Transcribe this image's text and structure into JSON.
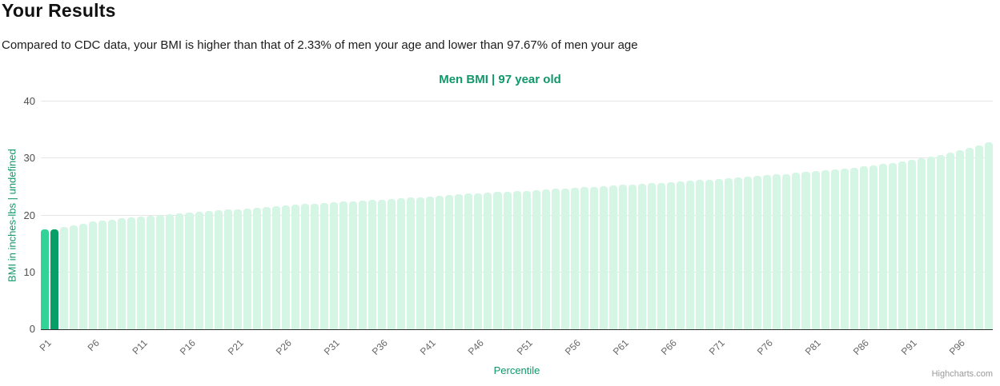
{
  "header": {
    "title": "Your Results",
    "subtitle": "Compared to CDC data, your BMI is higher than that of 2.33% of men your age and lower than 97.67% of men your age",
    "higher_than_pct": "2.33%",
    "lower_than_pct": "97.67%"
  },
  "chart": {
    "title": "Men BMI | 97 year old",
    "x_axis_title": "Percentile",
    "y_axis_title": "BMI in inches-lbs | undefined",
    "credit": "Highcharts.com"
  },
  "chart_data": {
    "type": "bar",
    "title": "Men BMI | 97 year old",
    "xlabel": "Percentile",
    "ylabel": "BMI in inches-lbs | undefined",
    "ylim": [
      0,
      40
    ],
    "yticks": [
      0,
      10,
      20,
      30,
      40
    ],
    "grid": "horizontal",
    "legend": "none",
    "x_tick_labels": [
      "P1",
      "P6",
      "P11",
      "P16",
      "P21",
      "P26",
      "P31",
      "P36",
      "P41",
      "P46",
      "P51",
      "P56",
      "P61",
      "P66",
      "P71",
      "P76",
      "P81",
      "P86",
      "P91",
      "P96"
    ],
    "x_tick_step": 5,
    "categories": [
      "P1",
      "P2",
      "P3",
      "P4",
      "P5",
      "P6",
      "P7",
      "P8",
      "P9",
      "P10",
      "P11",
      "P12",
      "P13",
      "P14",
      "P15",
      "P16",
      "P17",
      "P18",
      "P19",
      "P20",
      "P21",
      "P22",
      "P23",
      "P24",
      "P25",
      "P26",
      "P27",
      "P28",
      "P29",
      "P30",
      "P31",
      "P32",
      "P33",
      "P34",
      "P35",
      "P36",
      "P37",
      "P38",
      "P39",
      "P40",
      "P41",
      "P42",
      "P43",
      "P44",
      "P45",
      "P46",
      "P47",
      "P48",
      "P49",
      "P50",
      "P51",
      "P52",
      "P53",
      "P54",
      "P55",
      "P56",
      "P57",
      "P58",
      "P59",
      "P60",
      "P61",
      "P62",
      "P63",
      "P64",
      "P65",
      "P66",
      "P67",
      "P68",
      "P69",
      "P70",
      "P71",
      "P72",
      "P73",
      "P74",
      "P75",
      "P76",
      "P77",
      "P78",
      "P79",
      "P80",
      "P81",
      "P82",
      "P83",
      "P84",
      "P85",
      "P86",
      "P87",
      "P88",
      "P89",
      "P90",
      "P91",
      "P92",
      "P93",
      "P94",
      "P95",
      "P96",
      "P97",
      "P98",
      "P99"
    ],
    "values": [
      17.5,
      17.6,
      18.0,
      18.2,
      18.5,
      18.9,
      19.1,
      19.3,
      19.5,
      19.7,
      19.8,
      20.0,
      20.1,
      20.2,
      20.35,
      20.5,
      20.6,
      20.75,
      20.9,
      21.0,
      21.1,
      21.25,
      21.4,
      21.5,
      21.6,
      21.7,
      21.85,
      22.0,
      22.1,
      22.2,
      22.3,
      22.4,
      22.5,
      22.6,
      22.7,
      22.8,
      22.9,
      23.0,
      23.1,
      23.2,
      23.35,
      23.45,
      23.6,
      23.7,
      23.8,
      23.9,
      24.0,
      24.1,
      24.2,
      24.3,
      24.35,
      24.45,
      24.55,
      24.65,
      24.75,
      24.85,
      24.95,
      25.05,
      25.15,
      25.25,
      25.35,
      25.45,
      25.55,
      25.65,
      25.75,
      25.85,
      25.95,
      26.1,
      26.2,
      26.3,
      26.45,
      26.55,
      26.7,
      26.8,
      26.9,
      27.05,
      27.2,
      27.3,
      27.45,
      27.6,
      27.75,
      27.9,
      28.05,
      28.25,
      28.4,
      28.6,
      28.8,
      29.0,
      29.25,
      29.5,
      29.75,
      30.0,
      30.3,
      30.65,
      31.0,
      31.4,
      31.85,
      32.35,
      32.9
    ],
    "user_bar": "P2",
    "below_user_bars": [
      "P1"
    ],
    "colors": {
      "default": "#d5f5e5",
      "below_user": "#33d296",
      "user": "#089e68",
      "title_green": "#12976a",
      "gridline": "#e6e6e6",
      "axis_line": "#2f2f2f"
    }
  }
}
